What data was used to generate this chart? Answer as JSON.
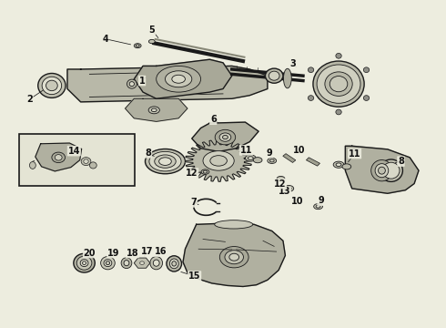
{
  "background_color": "#ededdf",
  "line_color": "#1a1a1a",
  "label_color": "#111111",
  "fig_width": 4.9,
  "fig_height": 3.6,
  "dpi": 100
}
